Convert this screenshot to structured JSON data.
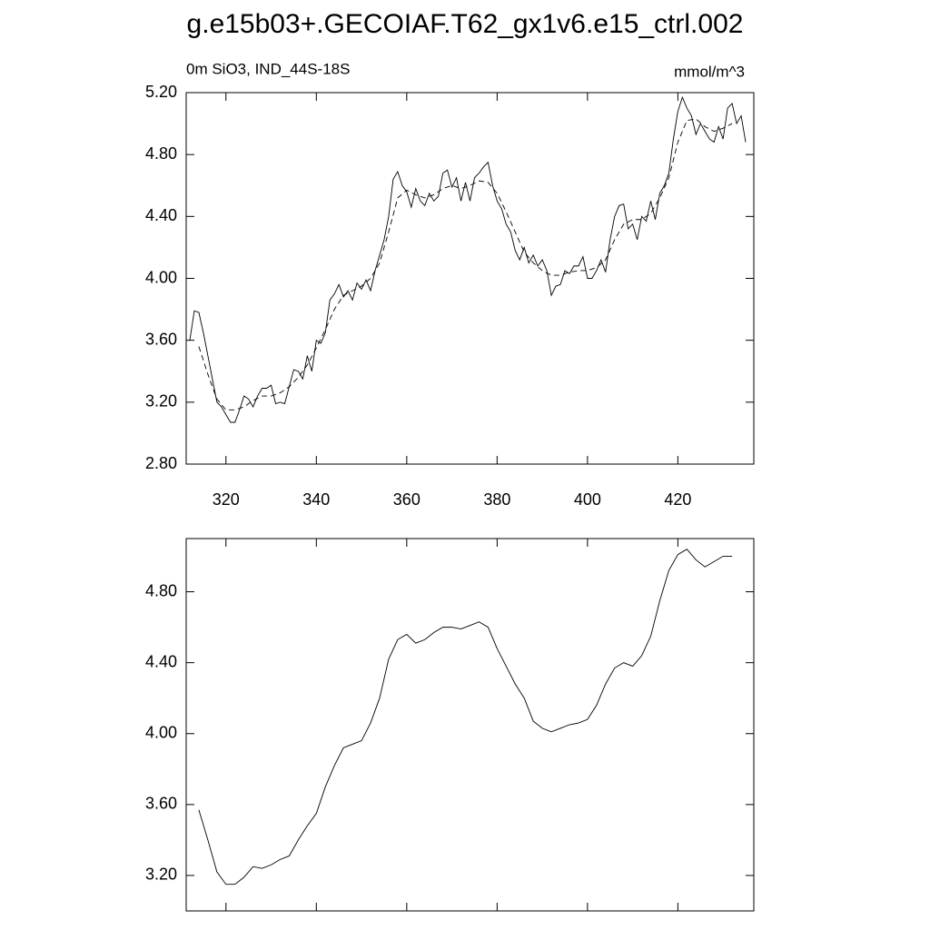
{
  "chart_data": [
    {
      "type": "line",
      "title": "g.e15b03+.GECOIAF.T62_gx1v6.e15_ctrl.002",
      "subtitle_left": "0m SiO3, IND_44S-18S",
      "subtitle_right": "mmol/m^3",
      "xlim": [
        311.2,
        436.8
      ],
      "xticks": [
        320,
        340,
        360,
        380,
        400,
        420
      ],
      "ylim": [
        2.8,
        5.2
      ],
      "yticks": [
        {
          "value": 2.8,
          "label": "2.80"
        },
        {
          "value": 3.2,
          "label": "3.20"
        },
        {
          "value": 3.6,
          "label": "3.60"
        },
        {
          "value": 4.0,
          "label": "4.00"
        },
        {
          "value": 4.4,
          "label": "4.40"
        },
        {
          "value": 4.8,
          "label": "4.80"
        },
        {
          "value": 5.2,
          "label": "5.20"
        }
      ],
      "series": [
        {
          "color": "#000000",
          "line_style": "solid",
          "x": [
            312,
            313,
            314,
            315,
            316,
            317,
            318,
            319,
            320,
            321,
            322,
            323,
            324,
            325,
            326,
            327,
            328,
            329,
            330,
            331,
            332,
            333,
            334,
            335,
            336,
            337,
            338,
            339,
            340,
            341,
            342,
            343,
            344,
            345,
            346,
            347,
            348,
            349,
            350,
            351,
            352,
            353,
            354,
            355,
            356,
            357,
            358,
            359,
            360,
            361,
            362,
            363,
            364,
            365,
            366,
            367,
            368,
            369,
            370,
            371,
            372,
            373,
            374,
            375,
            376,
            377,
            378,
            379,
            380,
            381,
            382,
            383,
            384,
            385,
            386,
            387,
            388,
            389,
            390,
            391,
            392,
            393,
            394,
            395,
            396,
            397,
            398,
            399,
            400,
            401,
            402,
            403,
            404,
            405,
            406,
            407,
            408,
            409,
            410,
            411,
            412,
            413,
            414,
            415,
            416,
            417,
            418,
            419,
            420,
            421,
            422,
            423,
            424,
            425,
            426,
            427,
            428,
            429,
            430,
            431,
            432,
            433,
            434,
            435
          ],
          "values": [
            3.6,
            3.79,
            3.78,
            3.65,
            3.5,
            3.35,
            3.2,
            3.17,
            3.12,
            3.07,
            3.07,
            3.15,
            3.24,
            3.22,
            3.17,
            3.24,
            3.29,
            3.29,
            3.31,
            3.19,
            3.2,
            3.19,
            3.3,
            3.41,
            3.4,
            3.35,
            3.5,
            3.4,
            3.6,
            3.58,
            3.65,
            3.86,
            3.9,
            3.96,
            3.88,
            3.92,
            3.86,
            3.97,
            3.93,
            3.99,
            3.92,
            4.05,
            4.15,
            4.25,
            4.4,
            4.64,
            4.69,
            4.6,
            4.56,
            4.46,
            4.58,
            4.5,
            4.47,
            4.55,
            4.5,
            4.53,
            4.68,
            4.7,
            4.59,
            4.65,
            4.5,
            4.62,
            4.5,
            4.65,
            4.68,
            4.72,
            4.75,
            4.6,
            4.5,
            4.45,
            4.35,
            4.3,
            4.18,
            4.12,
            4.2,
            4.1,
            4.15,
            4.08,
            4.12,
            4.05,
            3.89,
            3.95,
            3.96,
            4.05,
            4.03,
            4.08,
            4.08,
            4.14,
            4.0,
            4.0,
            4.05,
            4.12,
            4.04,
            4.25,
            4.4,
            4.47,
            4.48,
            4.32,
            4.35,
            4.25,
            4.4,
            4.37,
            4.5,
            4.38,
            4.55,
            4.6,
            4.68,
            4.9,
            5.08,
            5.17,
            5.1,
            5.05,
            4.93,
            5.0,
            4.95,
            4.9,
            4.88,
            4.98,
            4.9,
            5.1,
            5.13,
            5.0,
            5.05,
            4.88
          ]
        },
        {
          "color": "#000000",
          "line_style": "dashed",
          "x": [
            314,
            316,
            318,
            320,
            322,
            324,
            326,
            328,
            330,
            332,
            334,
            336,
            338,
            340,
            342,
            344,
            346,
            348,
            350,
            352,
            354,
            356,
            358,
            360,
            362,
            364,
            366,
            368,
            370,
            372,
            374,
            376,
            378,
            380,
            382,
            384,
            386,
            388,
            390,
            392,
            394,
            396,
            398,
            400,
            402,
            404,
            406,
            408,
            410,
            412,
            414,
            416,
            418,
            420,
            422,
            424,
            426,
            428,
            430,
            432
          ],
          "values": [
            3.56,
            3.38,
            3.22,
            3.15,
            3.15,
            3.17,
            3.21,
            3.24,
            3.24,
            3.26,
            3.3,
            3.36,
            3.44,
            3.55,
            3.67,
            3.8,
            3.89,
            3.92,
            3.95,
            4.0,
            4.1,
            4.3,
            4.52,
            4.57,
            4.54,
            4.52,
            4.54,
            4.58,
            4.6,
            4.58,
            4.6,
            4.63,
            4.62,
            4.55,
            4.43,
            4.3,
            4.17,
            4.1,
            4.05,
            4.02,
            4.02,
            4.04,
            4.05,
            4.05,
            4.07,
            4.12,
            4.25,
            4.35,
            4.38,
            4.38,
            4.42,
            4.52,
            4.65,
            4.88,
            5.02,
            5.03,
            4.98,
            4.95,
            4.97,
            5.0
          ]
        }
      ]
    },
    {
      "type": "line",
      "xlim": [
        311.2,
        436.8
      ],
      "xticks": [
        320,
        340,
        360,
        380,
        400,
        420
      ],
      "ylim": [
        3.0,
        5.1
      ],
      "yticks": [
        {
          "value": 3.2,
          "label": "3.20"
        },
        {
          "value": 3.6,
          "label": "3.60"
        },
        {
          "value": 4.0,
          "label": "4.00"
        },
        {
          "value": 4.4,
          "label": "4.40"
        },
        {
          "value": 4.8,
          "label": "4.80"
        }
      ],
      "series": [
        {
          "color": "#000000",
          "line_style": "solid",
          "x": [
            314,
            316,
            318,
            320,
            322,
            324,
            326,
            328,
            330,
            332,
            334,
            336,
            338,
            340,
            342,
            344,
            346,
            348,
            350,
            352,
            354,
            356,
            358,
            360,
            362,
            364,
            366,
            368,
            370,
            372,
            374,
            376,
            378,
            380,
            382,
            384,
            386,
            388,
            390,
            392,
            394,
            396,
            398,
            400,
            402,
            404,
            406,
            408,
            410,
            412,
            414,
            416,
            418,
            420,
            422,
            424,
            426,
            428,
            430,
            432
          ],
          "values": [
            3.57,
            3.4,
            3.22,
            3.15,
            3.15,
            3.19,
            3.25,
            3.24,
            3.26,
            3.29,
            3.31,
            3.4,
            3.48,
            3.55,
            3.7,
            3.82,
            3.92,
            3.94,
            3.96,
            4.06,
            4.2,
            4.42,
            4.53,
            4.56,
            4.51,
            4.53,
            4.57,
            4.6,
            4.6,
            4.59,
            4.61,
            4.63,
            4.6,
            4.48,
            4.38,
            4.28,
            4.2,
            4.07,
            4.03,
            4.01,
            4.03,
            4.05,
            4.06,
            4.08,
            4.16,
            4.28,
            4.37,
            4.4,
            4.38,
            4.44,
            4.55,
            4.75,
            4.92,
            5.01,
            5.04,
            4.98,
            4.94,
            4.97,
            5.0,
            5.0
          ]
        }
      ]
    }
  ]
}
